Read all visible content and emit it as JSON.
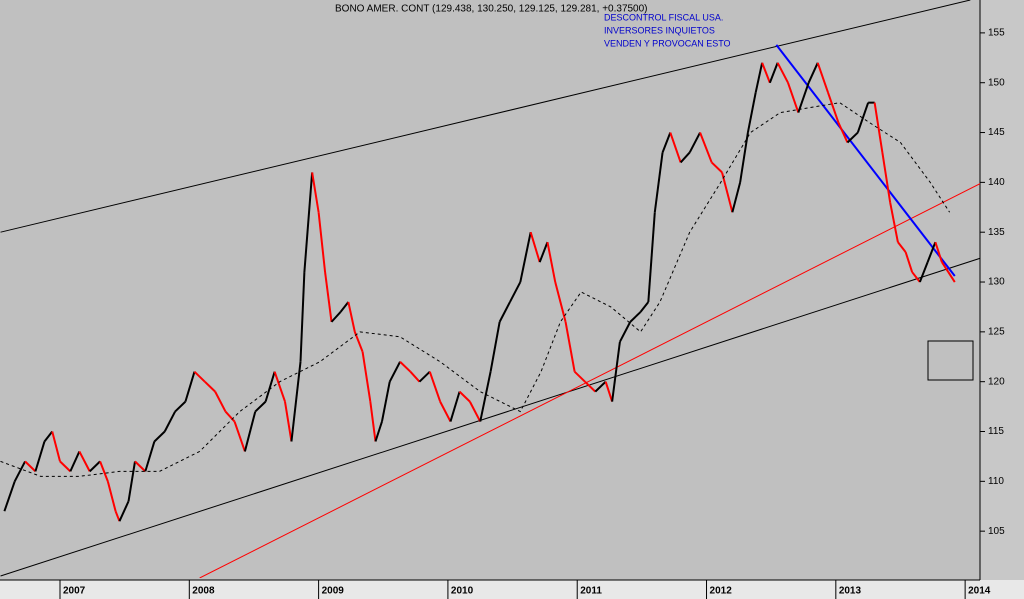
{
  "chart_data": {
    "type": "line",
    "title": "BONO AMER. CONT (129.438, 130.250, 129.125, 129.281, +0.37500)",
    "annotations": [
      "DESCONTROL FISCAL USA.",
      "INVERSORES INQUIETOS",
      "VENDEN Y PROVOCAN ESTO"
    ],
    "series": [
      {
        "name": "price",
        "color": "#000000",
        "down_color": "#ff0000",
        "x": [
          2006.57,
          2006.65,
          2006.73,
          2006.81,
          2006.88,
          2006.94,
          2007.0,
          2007.08,
          2007.15,
          2007.23,
          2007.31,
          2007.37,
          2007.43,
          2007.46,
          2007.53,
          2007.58,
          2007.66,
          2007.73,
          2007.81,
          2007.89,
          2007.97,
          2008.04,
          2008.12,
          2008.2,
          2008.28,
          2008.35,
          2008.43,
          2008.51,
          2008.59,
          2008.66,
          2008.74,
          2008.79,
          2008.86,
          2008.89,
          2008.95,
          2009.0,
          2009.05,
          2009.1,
          2009.17,
          2009.23,
          2009.28,
          2009.34,
          2009.4,
          2009.44,
          2009.49,
          2009.55,
          2009.63,
          2009.71,
          2009.78,
          2009.86,
          2009.94,
          2010.02,
          2010.09,
          2010.17,
          2010.25,
          2010.33,
          2010.4,
          2010.48,
          2010.56,
          2010.64,
          2010.71,
          2010.77,
          2010.83,
          2010.91,
          2010.98,
          2011.06,
          2011.14,
          2011.22,
          2011.27,
          2011.33,
          2011.41,
          2011.49,
          2011.55,
          2011.6,
          2011.66,
          2011.72,
          2011.8,
          2011.87,
          2011.95,
          2012.04,
          2012.12,
          2012.2,
          2012.26,
          2012.32,
          2012.38,
          2012.43,
          2012.49,
          2012.55,
          2012.63,
          2012.71,
          2012.79,
          2012.86,
          2012.94,
          2013.02,
          2013.09,
          2013.17,
          2013.25,
          2013.3,
          2013.36,
          2013.42,
          2013.48,
          2013.54,
          2013.59,
          2013.65,
          2013.71,
          2013.77,
          2013.82,
          2013.87,
          2013.92
        ],
        "values": [
          107,
          110,
          112,
          111,
          114,
          115,
          112,
          111,
          113,
          111,
          112,
          110,
          107,
          106,
          108,
          112,
          111,
          114,
          115,
          117,
          118,
          121,
          120,
          119,
          117,
          116,
          113,
          117,
          118,
          121,
          118,
          114,
          122,
          131,
          141,
          137,
          131,
          126,
          127,
          128,
          125,
          123,
          118,
          114,
          116,
          120,
          122,
          121,
          120,
          121,
          118,
          116,
          119,
          118,
          116,
          121,
          126,
          128,
          130,
          135,
          132,
          134,
          130,
          126,
          121,
          120,
          119,
          120,
          118,
          124,
          126,
          127,
          128,
          137,
          143,
          145,
          142,
          143,
          145,
          142,
          141,
          137,
          140,
          145,
          149,
          152,
          150,
          152,
          150,
          147,
          150,
          152,
          149,
          146,
          144,
          145,
          148,
          148,
          143,
          138,
          134,
          133,
          131,
          130,
          132,
          134,
          132,
          131,
          130
        ]
      },
      {
        "name": "moving-average",
        "color": "#000000",
        "dashed": true,
        "x": [
          2006.54,
          2006.85,
          2007.15,
          2007.46,
          2007.77,
          2008.08,
          2008.39,
          2008.7,
          2009.01,
          2009.32,
          2009.63,
          2009.94,
          2010.25,
          2010.56,
          2010.72,
          2010.87,
          2011.03,
          2011.26,
          2011.49,
          2011.64,
          2011.87,
          2012.11,
          2012.34,
          2012.57,
          2012.8,
          2013.03,
          2013.26,
          2013.5,
          2013.73,
          2013.88
        ],
        "values": [
          112,
          110.5,
          110.5,
          111,
          111,
          113,
          117,
          120,
          122,
          125,
          124.5,
          122,
          119,
          117,
          121,
          126,
          129,
          127.5,
          125,
          128,
          135,
          140,
          145,
          147,
          147.5,
          148,
          146,
          144,
          140,
          137
        ]
      }
    ],
    "lines": [
      {
        "x": [
          2006.54,
          2014.04
        ],
        "values": [
          135.0,
          158.3
        ],
        "color": "#000000"
      },
      {
        "x": [
          2006.54,
          2014.12
        ],
        "values": [
          100.5,
          132.4
        ],
        "color": "#000000"
      },
      {
        "x": [
          2008.08,
          2014.12
        ],
        "values": [
          100.3,
          139.9
        ],
        "color": "#ff0000"
      },
      {
        "x": [
          2012.54,
          2013.92
        ],
        "values": [
          153.8,
          130.6
        ],
        "color": "#0000ff"
      }
    ],
    "xlim": [
      2006.536,
      2014.115
    ],
    "xticks": [
      2007,
      2008,
      2009,
      2010,
      2011,
      2012,
      2013,
      2014
    ],
    "ylim": [
      100.3,
      158.3
    ],
    "yticks": [
      105,
      110,
      115,
      120,
      125,
      130,
      135,
      140,
      145,
      150,
      155
    ]
  }
}
